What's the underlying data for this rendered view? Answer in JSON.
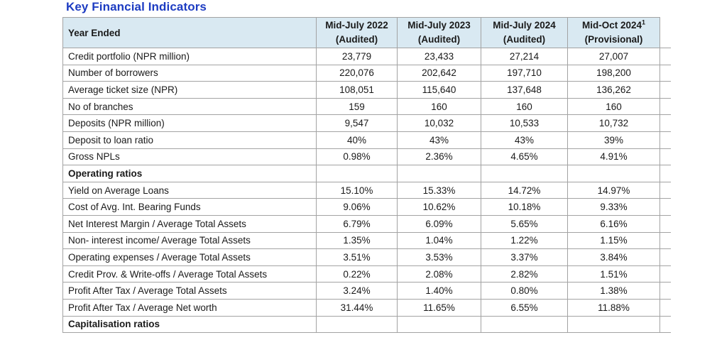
{
  "title": "Key Financial Indicators",
  "table": {
    "header": {
      "label": "Year Ended",
      "columns": [
        {
          "line1": "Mid-July 2022",
          "sup": "",
          "line2": "(Audited)"
        },
        {
          "line1": "Mid-July 2023",
          "sup": "",
          "line2": "(Audited)"
        },
        {
          "line1": "Mid-July 2024",
          "sup": "",
          "line2": "(Audited)"
        },
        {
          "line1": "Mid-Oct 2024",
          "sup": "1",
          "line2": "(Provisional)"
        }
      ]
    },
    "rows": [
      {
        "label": "Credit portfolio (NPR million)",
        "bold": false,
        "values": [
          "23,779",
          "23,433",
          "27,214",
          "27,007"
        ]
      },
      {
        "label": "Number of borrowers",
        "bold": false,
        "values": [
          "220,076",
          "202,642",
          "197,710",
          "198,200"
        ]
      },
      {
        "label": "Average ticket size (NPR)",
        "bold": false,
        "values": [
          "108,051",
          "115,640",
          "137,648",
          "136,262"
        ]
      },
      {
        "label": "No of branches",
        "bold": false,
        "values": [
          "159",
          "160",
          "160",
          "160"
        ]
      },
      {
        "label": "Deposits (NPR million)",
        "bold": false,
        "values": [
          "9,547",
          "10,032",
          "10,533",
          "10,732"
        ]
      },
      {
        "label": "Deposit to loan ratio",
        "bold": false,
        "values": [
          "40%",
          "43%",
          "43%",
          "39%"
        ]
      },
      {
        "label": "Gross NPLs",
        "bold": false,
        "values": [
          "0.98%",
          "2.36%",
          "4.65%",
          "4.91%"
        ]
      },
      {
        "label": "Operating ratios",
        "bold": true,
        "values": [
          "",
          "",
          "",
          ""
        ]
      },
      {
        "label": "Yield on Average Loans",
        "bold": false,
        "values": [
          "15.10%",
          "15.33%",
          "14.72%",
          "14.97%"
        ]
      },
      {
        "label": "Cost of Avg. Int. Bearing Funds",
        "bold": false,
        "values": [
          "9.06%",
          "10.62%",
          "10.18%",
          "9.33%"
        ]
      },
      {
        "label": "Net Interest Margin / Average Total Assets",
        "bold": false,
        "values": [
          "6.79%",
          "6.09%",
          "5.65%",
          "6.16%"
        ]
      },
      {
        "label": "Non- interest income/ Average Total Assets",
        "bold": false,
        "values": [
          "1.35%",
          "1.04%",
          "1.22%",
          "1.15%"
        ]
      },
      {
        "label": "Operating expenses / Average Total Assets",
        "bold": false,
        "values": [
          "3.51%",
          "3.53%",
          "3.37%",
          "3.84%"
        ]
      },
      {
        "label": "Credit Prov. & Write-offs / Average Total Assets",
        "bold": false,
        "values": [
          "0.22%",
          "2.08%",
          "2.82%",
          "1.51%"
        ]
      },
      {
        "label": "Profit After Tax / Average Total Assets",
        "bold": false,
        "values": [
          "3.24%",
          "1.40%",
          "0.80%",
          "1.38%"
        ]
      },
      {
        "label": "Profit After Tax / Average Net worth",
        "bold": false,
        "values": [
          "31.44%",
          "11.65%",
          "6.55%",
          "11.88%"
        ]
      },
      {
        "label": "Capitalisation ratios",
        "bold": true,
        "values": [
          "",
          "",
          "",
          ""
        ]
      }
    ]
  },
  "colors": {
    "title": "#1d3cc2",
    "header_background": "#d9e9f2",
    "grid_border": "#a3a3a3",
    "text": "#1a1a1a"
  }
}
